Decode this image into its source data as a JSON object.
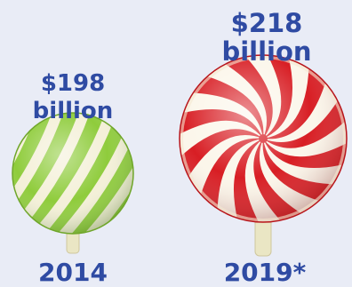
{
  "chart_data": {
    "type": "bar",
    "categories": [
      "2014",
      "2019*"
    ],
    "values": [
      198,
      218
    ],
    "value_labels": [
      {
        "line1": "$198",
        "line2": "billion"
      },
      {
        "line1": "$218",
        "line2": "billion"
      }
    ],
    "title": "",
    "xlabel": "",
    "ylabel": ""
  },
  "colors": {
    "background": "#e9ecf6",
    "text": "#2f4ba3",
    "green_candy_base": "#8fcc3c",
    "green_candy_stripe": "#f4f0d8",
    "red_candy_base": "#d81e24",
    "red_candy_stripe": "#fbf6ea",
    "stick": "#eae6c4"
  }
}
